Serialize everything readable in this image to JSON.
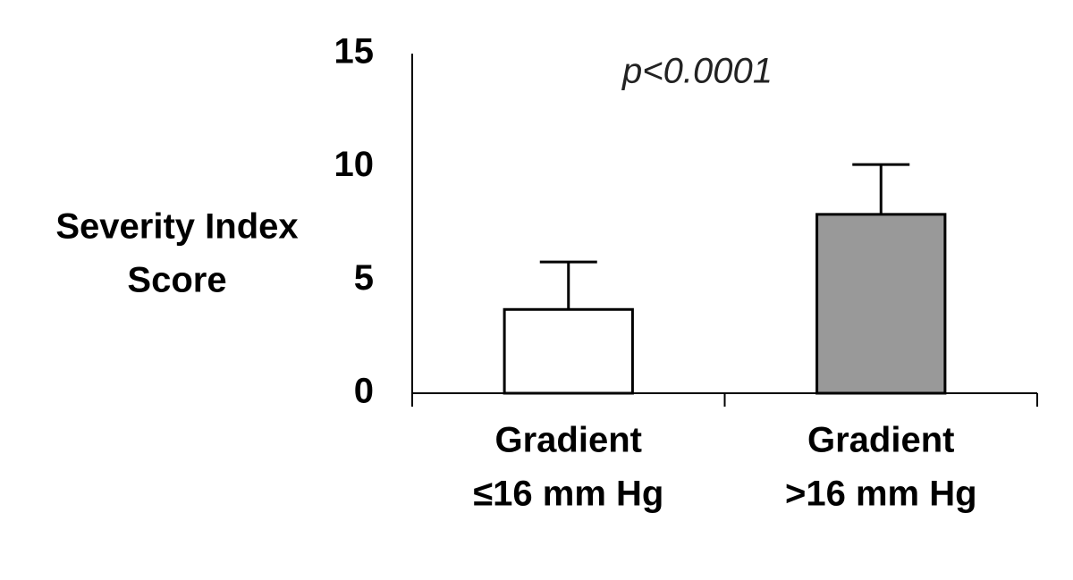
{
  "chart_data": {
    "type": "bar",
    "y_label": [
      "Severity Index",
      "Score"
    ],
    "annotation": "p<0.0001",
    "categories": [
      [
        "Gradient",
        "≤16 mm Hg"
      ],
      [
        "Gradient",
        ">16 mm Hg"
      ]
    ],
    "values": [
      3.7,
      7.9
    ],
    "errors": [
      2.1,
      2.2
    ],
    "colors": [
      "#ffffff",
      "#999999"
    ],
    "ylim": [
      0,
      15
    ],
    "yticks": [
      0,
      5,
      10,
      15
    ]
  }
}
